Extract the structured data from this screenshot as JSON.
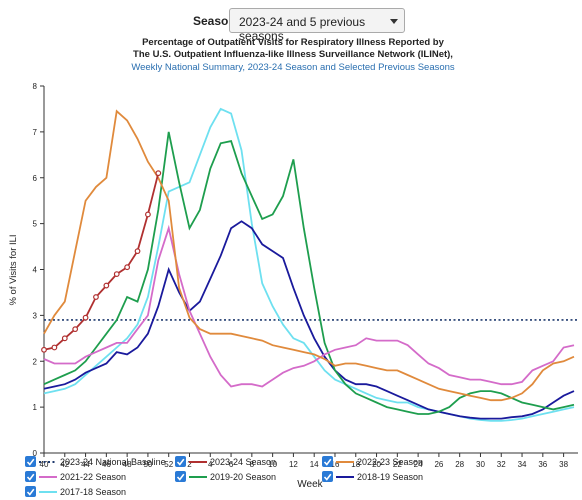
{
  "controls": {
    "season_label": "Season:",
    "season_value": "2023-24 and 5 previous seasons"
  },
  "chart_data": {
    "type": "line",
    "title": [
      "Percentage of Outpatient Visits for Respiratory Illness Reported by",
      "The U.S. Outpatient Influenza-like Illness Surveillance Network (ILINet),"
    ],
    "subtitle": "Weekly National Summary, 2023-24 Season and Selected Previous Seasons",
    "x_label": "Week",
    "y_label": "% of Visits for ILI",
    "categories": [
      "40",
      null,
      "42",
      null,
      "44",
      null,
      "46",
      null,
      "48",
      null,
      "50",
      null,
      "52",
      null,
      "2",
      null,
      "4",
      null,
      "6",
      null,
      "8",
      null,
      "10",
      null,
      "12",
      null,
      "14",
      null,
      "16",
      null,
      "18",
      null,
      "20",
      null,
      "22",
      null,
      "24",
      null,
      "26",
      null,
      "28",
      null,
      "30",
      null,
      "32",
      null,
      "34",
      null,
      "36",
      null,
      "38",
      null
    ],
    "ylim": [
      0,
      8
    ],
    "yticks": [
      0,
      1,
      2,
      3,
      4,
      5,
      6,
      7,
      8
    ],
    "baseline": {
      "name": "2023-24 National Baseline",
      "value": 2.9,
      "color": "#1f3a6e"
    },
    "series": [
      {
        "name": "2023-24 Season",
        "color": "#b03030",
        "markers": true,
        "values": [
          2.25,
          2.3,
          2.5,
          2.7,
          2.95,
          3.4,
          3.65,
          3.9,
          4.05,
          4.4,
          5.2,
          6.1,
          null,
          null,
          null,
          null,
          null,
          null,
          null,
          null,
          null,
          null,
          null,
          null,
          null,
          null,
          null,
          null,
          null,
          null,
          null,
          null,
          null,
          null,
          null,
          null,
          null,
          null,
          null,
          null,
          null,
          null,
          null,
          null,
          null,
          null,
          null,
          null,
          null,
          null,
          null,
          null
        ]
      },
      {
        "name": "2022-23 Season",
        "color": "#e08a3c",
        "values": [
          2.6,
          3.0,
          3.3,
          4.4,
          5.5,
          5.8,
          6.0,
          7.45,
          7.25,
          6.85,
          6.35,
          6.0,
          5.5,
          3.6,
          2.95,
          2.7,
          2.6,
          2.6,
          2.6,
          2.55,
          2.5,
          2.45,
          2.35,
          2.3,
          2.25,
          2.2,
          2.15,
          2.05,
          1.9,
          1.95,
          1.95,
          1.9,
          1.85,
          1.8,
          1.8,
          1.7,
          1.6,
          1.5,
          1.4,
          1.35,
          1.3,
          1.25,
          1.2,
          1.15,
          1.15,
          1.2,
          1.3,
          1.5,
          1.8,
          1.95,
          2.0,
          2.1
        ]
      },
      {
        "name": "2021-22 Season",
        "color": "#d46bc9",
        "values": [
          2.05,
          1.95,
          1.95,
          1.95,
          2.1,
          2.2,
          2.3,
          2.4,
          2.4,
          2.7,
          3.0,
          4.2,
          4.9,
          3.9,
          3.1,
          2.6,
          2.1,
          1.7,
          1.45,
          1.5,
          1.5,
          1.45,
          1.6,
          1.75,
          1.85,
          1.9,
          2.0,
          2.15,
          2.25,
          2.3,
          2.35,
          2.5,
          2.45,
          2.45,
          2.45,
          2.35,
          2.15,
          1.95,
          1.85,
          1.7,
          1.65,
          1.6,
          1.6,
          1.55,
          1.5,
          1.5,
          1.55,
          1.8,
          1.9,
          2.0,
          2.3,
          2.35
        ]
      },
      {
        "name": "2019-20 Season",
        "color": "#1e9e4e",
        "values": [
          1.5,
          1.6,
          1.7,
          1.8,
          2.0,
          2.3,
          2.6,
          2.9,
          3.4,
          3.3,
          4.0,
          5.3,
          7.0,
          5.9,
          4.9,
          5.3,
          6.2,
          6.75,
          6.8,
          6.1,
          5.6,
          5.1,
          5.2,
          5.6,
          6.4,
          4.9,
          3.6,
          2.4,
          1.8,
          1.5,
          1.3,
          1.2,
          1.1,
          1.0,
          0.95,
          0.9,
          0.85,
          0.85,
          0.9,
          1.0,
          1.2,
          1.3,
          1.35,
          1.35,
          1.3,
          1.2,
          1.1,
          1.05,
          1.0,
          0.95,
          1.0,
          1.05
        ]
      },
      {
        "name": "2018-19 Season",
        "color": "#1a1a9c",
        "values": [
          1.4,
          1.45,
          1.5,
          1.6,
          1.75,
          1.85,
          1.95,
          2.2,
          2.15,
          2.3,
          2.6,
          3.2,
          4.0,
          3.5,
          3.1,
          3.3,
          3.8,
          4.3,
          4.9,
          5.05,
          4.9,
          4.55,
          4.4,
          4.25,
          3.6,
          3.0,
          2.5,
          2.1,
          1.8,
          1.6,
          1.5,
          1.5,
          1.45,
          1.35,
          1.25,
          1.15,
          1.05,
          0.95,
          0.9,
          0.85,
          0.8,
          0.77,
          0.75,
          0.75,
          0.75,
          0.78,
          0.8,
          0.85,
          0.95,
          1.1,
          1.25,
          1.35
        ]
      },
      {
        "name": "2017-18 Season",
        "color": "#6ee0f0",
        "values": [
          1.3,
          1.35,
          1.4,
          1.5,
          1.7,
          1.9,
          2.1,
          2.3,
          2.5,
          2.8,
          3.4,
          4.5,
          5.7,
          5.8,
          5.9,
          6.5,
          7.1,
          7.5,
          7.4,
          6.6,
          5.0,
          3.7,
          3.2,
          2.8,
          2.5,
          2.4,
          2.1,
          1.8,
          1.6,
          1.5,
          1.4,
          1.3,
          1.2,
          1.15,
          1.1,
          1.1,
          1.0,
          0.95,
          0.9,
          0.85,
          0.8,
          0.75,
          0.72,
          0.7,
          0.7,
          0.72,
          0.75,
          0.8,
          0.85,
          0.9,
          0.95,
          1.0
        ]
      }
    ]
  }
}
